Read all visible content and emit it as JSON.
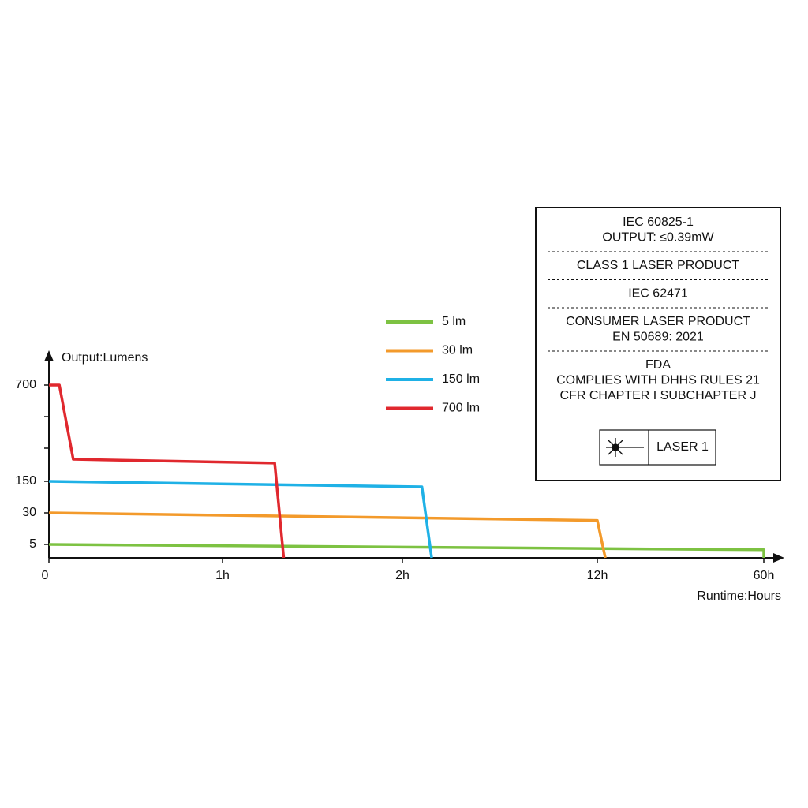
{
  "chart_data": {
    "type": "line",
    "y_label": "Output:Lumens",
    "x_label": "Runtime:Hours",
    "xlim": [
      0,
      60
    ],
    "xticks": [
      0,
      {
        "value": 1,
        "label": "1h"
      },
      {
        "value": 2,
        "label": "2h"
      },
      {
        "value": 12,
        "label": "12h"
      },
      {
        "value": 60,
        "label": "60h"
      }
    ],
    "ylim": [
      0,
      700
    ],
    "yticks": [
      5,
      30,
      150,
      700
    ],
    "series": [
      {
        "name": "5 lm",
        "color": "#7dc242",
        "x": [
          0,
          60,
          60
        ],
        "values": [
          5,
          3,
          0
        ]
      },
      {
        "name": "30 lm",
        "color": "#f39a2b",
        "x": [
          0,
          12,
          14.3
        ],
        "values": [
          30,
          24,
          0
        ]
      },
      {
        "name": "150 lm",
        "color": "#1fb1e6",
        "x": [
          0,
          3,
          3.5
        ],
        "values": [
          150,
          129,
          0
        ]
      },
      {
        "name": "700 lm",
        "color": "#e0282e",
        "x": [
          0,
          0.06,
          0.14,
          1.29,
          1.34
        ],
        "values": [
          700,
          700,
          276,
          254,
          0
        ]
      }
    ]
  },
  "label_panel": {
    "sections": [
      [
        "IEC 60825-1",
        "OUTPUT: ≤0.39mW"
      ],
      [
        "CLASS 1 LASER PRODUCT"
      ],
      [
        "IEC 62471"
      ],
      [
        "CONSUMER LASER PRODUCT",
        "EN 50689: 2021"
      ],
      [
        "FDA",
        "COMPLIES WITH DHHS RULES 21",
        "CFR CHAPTER I SUBCHAPTER J"
      ]
    ],
    "badge": "LASER 1"
  }
}
